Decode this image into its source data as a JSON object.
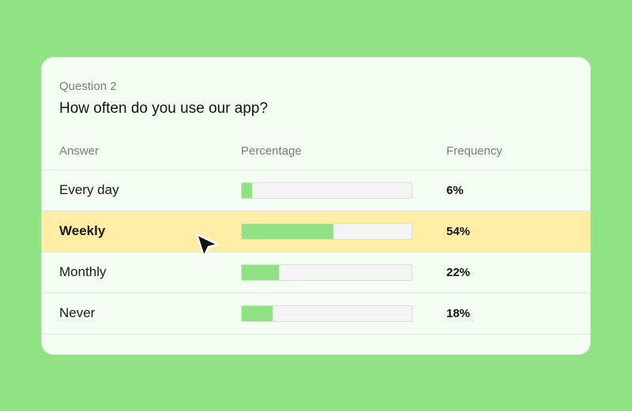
{
  "survey": {
    "question_label": "Question 2",
    "question_title": "How often do you use our app?"
  },
  "table": {
    "headers": {
      "answer": "Answer",
      "percentage": "Percentage",
      "frequency": "Frequency"
    },
    "rows": [
      {
        "answer": "Every day",
        "percent": 6,
        "frequency": "6%",
        "highlighted": false
      },
      {
        "answer": "Weekly",
        "percent": 54,
        "frequency": "54%",
        "highlighted": true
      },
      {
        "answer": "Monthly",
        "percent": 22,
        "frequency": "22%",
        "highlighted": false
      },
      {
        "answer": "Never",
        "percent": 18,
        "frequency": "18%",
        "highlighted": false
      }
    ]
  },
  "colors": {
    "background": "#90e284",
    "bar_fill": "#90e284",
    "highlight": "#ffeda6"
  },
  "cursor": {
    "icon": "mouse-pointer-icon"
  }
}
